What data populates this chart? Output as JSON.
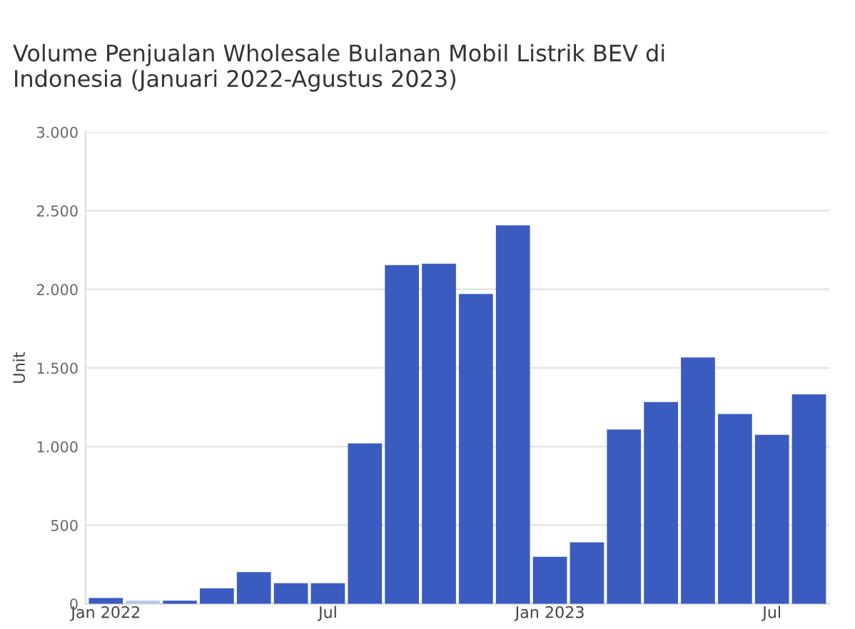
{
  "chart_data": {
    "type": "bar",
    "title": "Volume Penjualan Wholesale Bulanan Mobil Listrik BEV di\nIndonesia (Januari 2022-Agustus 2023)",
    "ylabel": "Unit",
    "categories": [
      "Jan 2022",
      null,
      null,
      null,
      null,
      null,
      "Jul",
      null,
      null,
      null,
      null,
      null,
      "Jan 2023",
      null,
      null,
      null,
      null,
      null,
      "Jul",
      null
    ],
    "values": [
      37,
      20,
      20,
      98,
      202,
      131,
      131,
      1020,
      2154,
      2163,
      1970,
      2407,
      299,
      391,
      1109,
      1283,
      1567,
      1207,
      1075,
      1332
    ],
    "colors": [
      "#3a5bbf",
      "#b9c5ec",
      "#3a5bbf",
      "#3a5bbf",
      "#3a5bbf",
      "#3a5bbf",
      "#3a5bbf",
      "#3a5bbf",
      "#3a5bbf",
      "#3a5bbf",
      "#3a5bbf",
      "#3a5bbf",
      "#3a5bbf",
      "#3a5bbf",
      "#3a5bbf",
      "#3a5bbf",
      "#3a5bbf",
      "#3a5bbf",
      "#3a5bbf",
      "#3a5bbf"
    ],
    "ylim": [
      0,
      3000
    ],
    "yticks": [
      0,
      {
        "value": 500,
        "label": "500"
      },
      {
        "value": 1000,
        "label": "1.000"
      },
      {
        "value": 1500,
        "label": "1.500"
      },
      {
        "value": 2000,
        "label": "2.000"
      },
      {
        "value": 2500,
        "label": "2.500"
      },
      {
        "value": 3000,
        "label": "3.000"
      }
    ],
    "grid": "y"
  }
}
